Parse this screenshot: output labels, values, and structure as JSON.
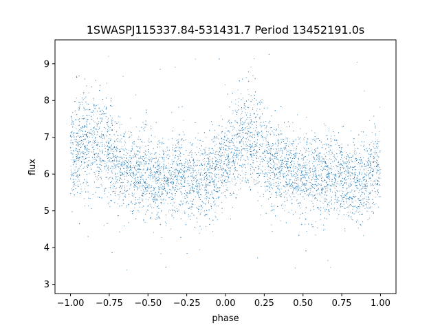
{
  "chart_data": {
    "type": "scatter",
    "title": "1SWASPJ115337.84-531431.7 Period 13452191.0s",
    "xlabel": "phase",
    "ylabel": "flux",
    "xlim": [
      -1.1,
      1.1
    ],
    "ylim": [
      2.75,
      9.65
    ],
    "xticks": [
      -1.0,
      -0.75,
      -0.5,
      -0.25,
      0.0,
      0.25,
      0.5,
      0.75,
      1.0
    ],
    "xtick_labels": [
      "−1.00",
      "−0.75",
      "−0.50",
      "−0.25",
      "0.00",
      "0.25",
      "0.50",
      "0.75",
      "1.00"
    ],
    "yticks": [
      3,
      4,
      5,
      6,
      7,
      8,
      9
    ],
    "ytick_labels": [
      "3",
      "4",
      "5",
      "6",
      "7",
      "8",
      "9"
    ],
    "grid": false,
    "legend": "none",
    "point_color": "#1f77b4",
    "series": [
      {
        "profile_phase": [
          -1.0,
          -0.95,
          -0.9,
          -0.85,
          -0.8,
          -0.75,
          -0.7,
          -0.65,
          -0.6,
          -0.55,
          -0.5,
          -0.45,
          -0.4,
          -0.35,
          -0.3,
          -0.25,
          -0.2,
          -0.15,
          -0.1,
          -0.05,
          0.0,
          0.05,
          0.1,
          0.15,
          0.2,
          0.25,
          0.3,
          0.35,
          0.4,
          0.45,
          0.5,
          0.55,
          0.6,
          0.65,
          0.7,
          0.75,
          0.8,
          0.85,
          0.9,
          0.95,
          1.0
        ],
        "profile_flux": [
          6.5,
          6.7,
          6.9,
          6.9,
          6.8,
          6.6,
          6.3,
          6.2,
          6.1,
          6.0,
          5.9,
          5.9,
          5.9,
          5.95,
          6.0,
          5.9,
          5.8,
          5.8,
          5.9,
          6.1,
          6.3,
          6.6,
          6.9,
          6.9,
          6.8,
          6.6,
          6.3,
          6.2,
          6.1,
          6.0,
          5.9,
          5.9,
          5.9,
          5.95,
          6.0,
          5.9,
          5.8,
          5.8,
          5.9,
          6.1,
          6.3
        ],
        "scatter_sd": 0.55,
        "outlier_range": [
          3.0,
          9.3
        ]
      }
    ]
  }
}
